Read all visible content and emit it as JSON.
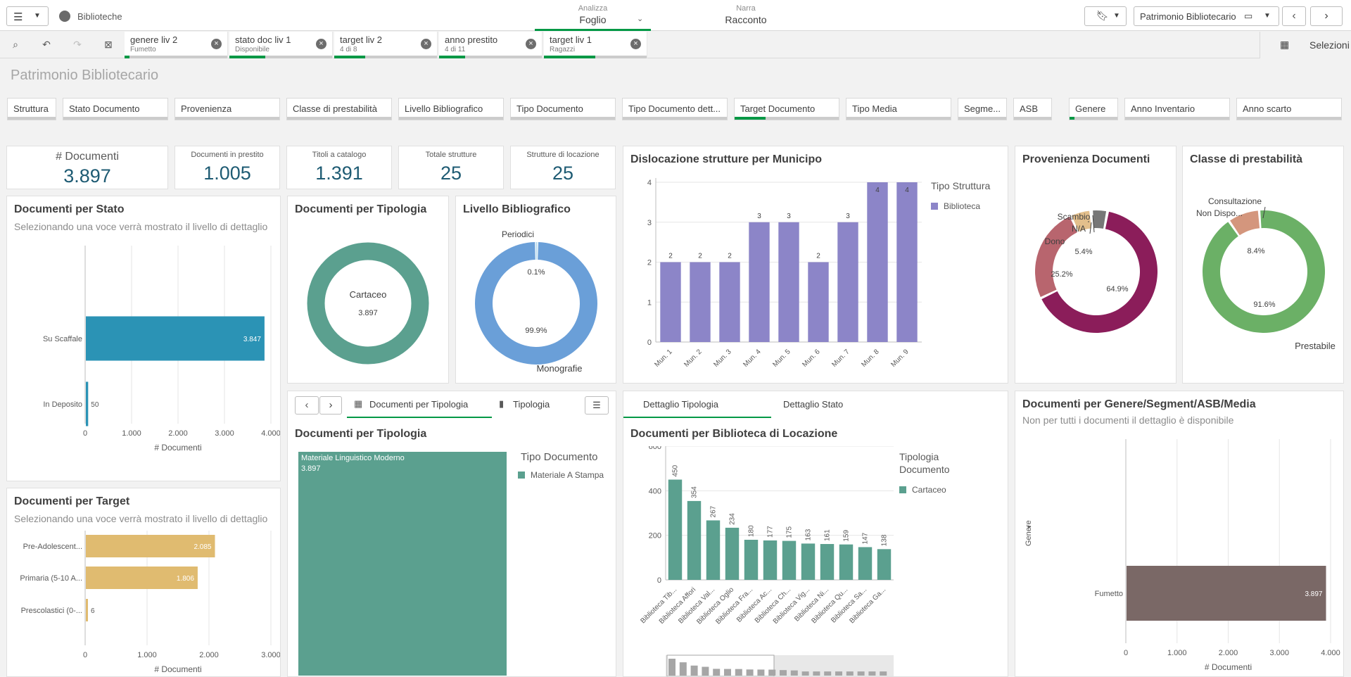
{
  "topbar": {
    "app_name": "Biblioteche",
    "tabs": [
      {
        "small": "Analizza",
        "big": "Foglio"
      },
      {
        "small": "Narra",
        "big": "Racconto"
      }
    ],
    "sheet_selector": "Patrimonio Bibliotecario"
  },
  "selections": {
    "chips": [
      {
        "title": "genere liv 2",
        "sub": "Fumetto",
        "fill": 0.05
      },
      {
        "title": "stato doc liv 1",
        "sub": "Disponibile",
        "fill": 0.35
      },
      {
        "title": "target liv 2",
        "sub": "4 di 8",
        "fill": 0.3
      },
      {
        "title": "anno prestito",
        "sub": "4 di 11",
        "fill": 0.25
      },
      {
        "title": "target liv 1",
        "sub": "Ragazzi",
        "fill": 0.5
      }
    ],
    "button_label": "Selezioni"
  },
  "sheet": {
    "title": "Patrimonio Bibliotecario"
  },
  "filters": [
    {
      "label": "Struttura",
      "fill": 0.0
    },
    {
      "label": "Stato Documento",
      "fill": 0.0
    },
    {
      "label": "Provenienza",
      "fill": 0.0
    },
    {
      "label": "Classe di prestabilità",
      "fill": 0.0
    },
    {
      "label": "Livello Bibliografico",
      "fill": 0.0
    },
    {
      "label": "Tipo Documento",
      "fill": 0.0
    },
    {
      "label": "Tipo Documento dett...",
      "fill": 0.0
    },
    {
      "label": "Target Documento",
      "fill": 0.3
    },
    {
      "label": "Tipo Media",
      "fill": 0.0
    },
    {
      "label": "Segme...",
      "fill": 0.0
    },
    {
      "label": "ASB",
      "fill": 0.0
    },
    {
      "label": "Genere",
      "fill": 0.1
    },
    {
      "label": "Anno Inventario",
      "fill": 0.0
    },
    {
      "label": "Anno scarto",
      "fill": 0.0
    }
  ],
  "kpis": [
    {
      "label": "# Documenti",
      "value": "3.897"
    },
    {
      "label": "Documenti in prestito",
      "value": "1.005"
    },
    {
      "label": "Titoli a catalogo",
      "value": "1.391"
    },
    {
      "label": "Totale strutture",
      "value": "25"
    },
    {
      "label": "Strutture di locazione",
      "value": "25"
    }
  ],
  "colors": {
    "green": "#009845",
    "teal_bar": "#2b93b5",
    "kpi": "#1e5b73",
    "purple": "#8c85c8",
    "sand": "#e0bb70",
    "seagreen": "#5ba08f",
    "blue": "#6a9fd8",
    "maroon": "#8b1d5a",
    "rose": "#b8656e",
    "beige": "#e3bf8c",
    "grey": "#777777",
    "green_donut": "#6bb066",
    "tan": "#d4967d",
    "brown": "#7a6866"
  },
  "docs_stato": {
    "title": "Documenti per Stato",
    "subtitle": "Selezionando una voce verrà mostrato il livello di dettaglio",
    "chart_data": {
      "type": "bar",
      "orientation": "horizontal",
      "categories": [
        "Su Scaffale",
        "In Deposito"
      ],
      "values": [
        3847,
        50
      ],
      "value_labels": [
        "3.847",
        "50"
      ],
      "xlim": [
        0,
        4000
      ],
      "xticks": [
        "0",
        "1.000",
        "2.000",
        "3.000",
        "4.000"
      ],
      "xlabel": "# Documenti"
    }
  },
  "docs_target": {
    "title": "Documenti per Target",
    "subtitle": "Selezionando una voce verrà mostrato il livello di dettaglio",
    "chart_data": {
      "type": "bar",
      "orientation": "horizontal",
      "categories": [
        "Pre-Adolescent...",
        "Primaria (5-10 A...",
        "Prescolastici (0-..."
      ],
      "values": [
        2085,
        1806,
        6
      ],
      "value_labels": [
        "2.085",
        "1.806",
        "6"
      ],
      "xlim": [
        0,
        3000
      ],
      "xticks": [
        "0",
        "1.000",
        "2.000",
        "3.000"
      ],
      "xlabel": "# Documenti"
    }
  },
  "docs_tipologia": {
    "title": "Documenti per Tipologia",
    "chart_data": {
      "type": "pie",
      "labels": [
        "Cartaceo"
      ],
      "values": [
        3897
      ],
      "center_label": "Cartaceo",
      "center_value": "3.897"
    }
  },
  "livello": {
    "title": "Livello Bibliografico",
    "chart_data": {
      "type": "pie",
      "labels": [
        "Periodici",
        "Monografie"
      ],
      "values": [
        0.1,
        99.9
      ],
      "value_labels": [
        "0.1%",
        "99.9%"
      ]
    }
  },
  "municipio": {
    "title": "Dislocazione strutture per Municipo",
    "legend_title": "Tipo Struttura",
    "chart_data": {
      "type": "bar",
      "categories": [
        "Mun. 1",
        "Mun. 2",
        "Mun. 3",
        "Mun. 4",
        "Mun. 5",
        "Mun. 6",
        "Mun. 7",
        "Mun. 8",
        "Mun. 9"
      ],
      "series": [
        {
          "name": "Biblioteca",
          "values": [
            2,
            2,
            2,
            3,
            3,
            2,
            3,
            4,
            4
          ]
        }
      ],
      "ylim": [
        0,
        4
      ],
      "yticks": [
        "0",
        "1",
        "2",
        "3",
        "4"
      ]
    }
  },
  "provenienza": {
    "title": "Provenienza Documenti",
    "chart_data": {
      "type": "pie",
      "labels": [
        "Scambio",
        "N/A",
        "Dono",
        "",
        ""
      ],
      "values": [
        0.0,
        0.0,
        5.4,
        25.2,
        64.9
      ],
      "value_labels": [
        "",
        "",
        "5.4%",
        "25.2%",
        "64.9%"
      ]
    }
  },
  "classe": {
    "title": "Classe di prestabilità",
    "chart_data": {
      "type": "pie",
      "labels": [
        "Consultazione",
        "Non Dispo...",
        "Prestabile"
      ],
      "values": [
        0.0,
        8.4,
        91.6
      ],
      "value_labels": [
        "",
        "8.4%",
        "91.6%"
      ]
    }
  },
  "container": {
    "tab1": "Documenti per Tipologia",
    "tab2": "Tipologia",
    "chart_title": "Documenti per Tipologia",
    "legend_title": "Tipo Documento",
    "chart_data": {
      "type": "treemap",
      "labels": [
        "Materiale Linguistico Moderno"
      ],
      "values": [
        3897
      ],
      "value_labels": [
        "3.897"
      ],
      "series": [
        {
          "name": "Materiale A Stampa",
          "values": [
            3897
          ]
        }
      ]
    }
  },
  "dettaglio": {
    "tab1": "Dettaglio Tipologia",
    "tab2": "Dettaglio Stato",
    "chart_title": "Documenti per Biblioteca di Locazione",
    "legend_title_1": "Tipologia",
    "legend_title_2": "Documento",
    "chart_data": {
      "type": "bar",
      "categories": [
        "Biblioteca Tib...",
        "Biblioteca Affori",
        "Biblioteca Val...",
        "Biblioteca Oglio",
        "Biblioteca Fra...",
        "Biblioteca Ac...",
        "Biblioteca Ch...",
        "Biblioteca Vig...",
        "Biblioteca Ni...",
        "Biblioteca Qu...",
        "Biblioteca Sa...",
        "Biblioteca Ga..."
      ],
      "series": [
        {
          "name": "Cartaceo",
          "values": [
            450,
            354,
            267,
            234,
            180,
            177,
            175,
            163,
            161,
            159,
            147,
            138
          ]
        }
      ],
      "ylim": [
        0,
        600
      ],
      "yticks": [
        "0",
        "200",
        "400",
        "600"
      ]
    }
  },
  "genere": {
    "title": "Documenti per Genere/Segment/ASB/Media",
    "subtitle": "Non per tutti i documenti il dettaglio è disponibile",
    "dimension_label": "Genere",
    "chart_data": {
      "type": "bar",
      "orientation": "horizontal",
      "categories": [
        "Fumetto"
      ],
      "values": [
        3897
      ],
      "value_labels": [
        "3.897"
      ],
      "xlim": [
        0,
        4000
      ],
      "xticks": [
        "0",
        "1.000",
        "2.000",
        "3.000",
        "4.000"
      ],
      "xlabel": "# Documenti"
    }
  }
}
